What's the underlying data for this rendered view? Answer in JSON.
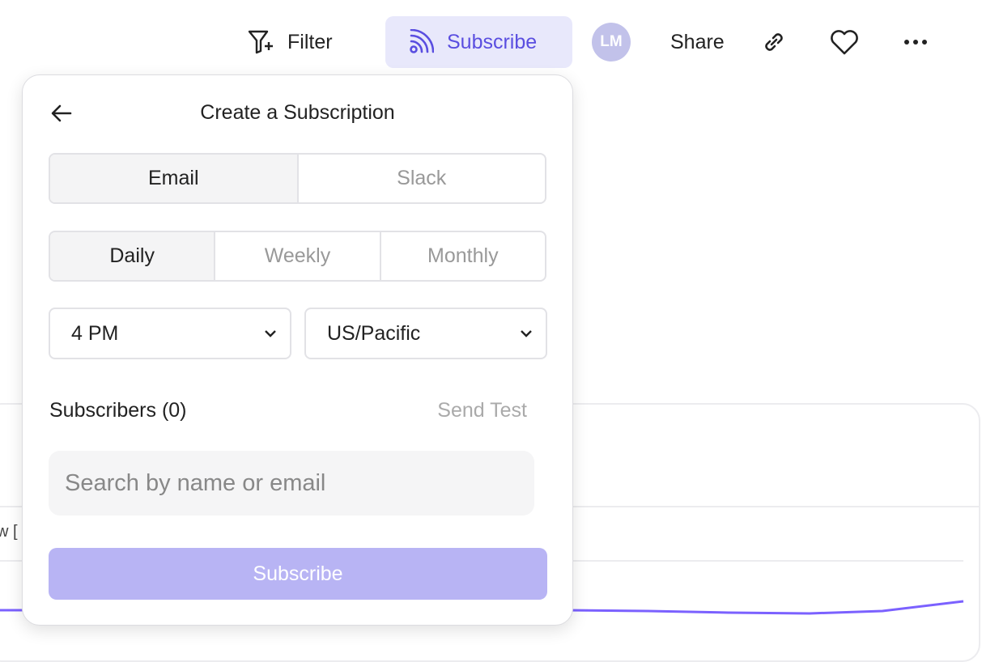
{
  "toolbar": {
    "filter": "Filter",
    "subscribe": "Subscribe",
    "avatar": "LM",
    "share": "Share"
  },
  "background": {
    "partial_label": "w [",
    "line_color": "#7b61ff"
  },
  "popover": {
    "title": "Create a Subscription",
    "channels": [
      {
        "label": "Email",
        "selected": true
      },
      {
        "label": "Slack",
        "selected": false
      }
    ],
    "frequencies": [
      {
        "label": "Daily",
        "selected": true
      },
      {
        "label": "Weekly",
        "selected": false
      },
      {
        "label": "Monthly",
        "selected": false
      }
    ],
    "time": "4 PM",
    "timezone": "US/Pacific",
    "subscribers_label": "Subscribers (0)",
    "send_test": "Send Test",
    "search_placeholder": "Search by name or email",
    "submit": "Subscribe"
  },
  "colors": {
    "accent": "#5a4ee0",
    "accent_bg": "#e8e8fb",
    "disabled_button": "#b8b4f4"
  }
}
